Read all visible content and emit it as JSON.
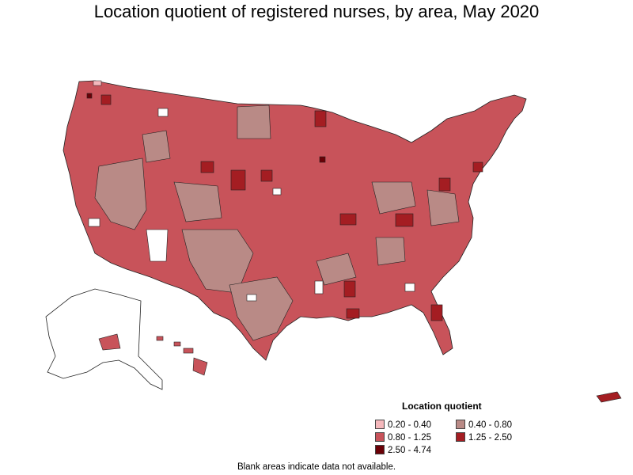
{
  "title": "Location quotient of registered nurses, by area, May 2020",
  "legend": {
    "title": "Location quotient",
    "items": [
      {
        "label": "0.20 - 0.40",
        "color": "#f5b8bc"
      },
      {
        "label": "0.40 - 0.80",
        "color": "#b98a86"
      },
      {
        "label": "0.80 - 1.25",
        "color": "#c8535a"
      },
      {
        "label": "1.25 - 2.50",
        "color": "#a41d22"
      },
      {
        "label": "2.50 - 4.74",
        "color": "#6a0006"
      }
    ]
  },
  "footnote": "Blank areas indicate data not available.",
  "colors": {
    "border": "#222222",
    "nodata": "#ffffff"
  }
}
